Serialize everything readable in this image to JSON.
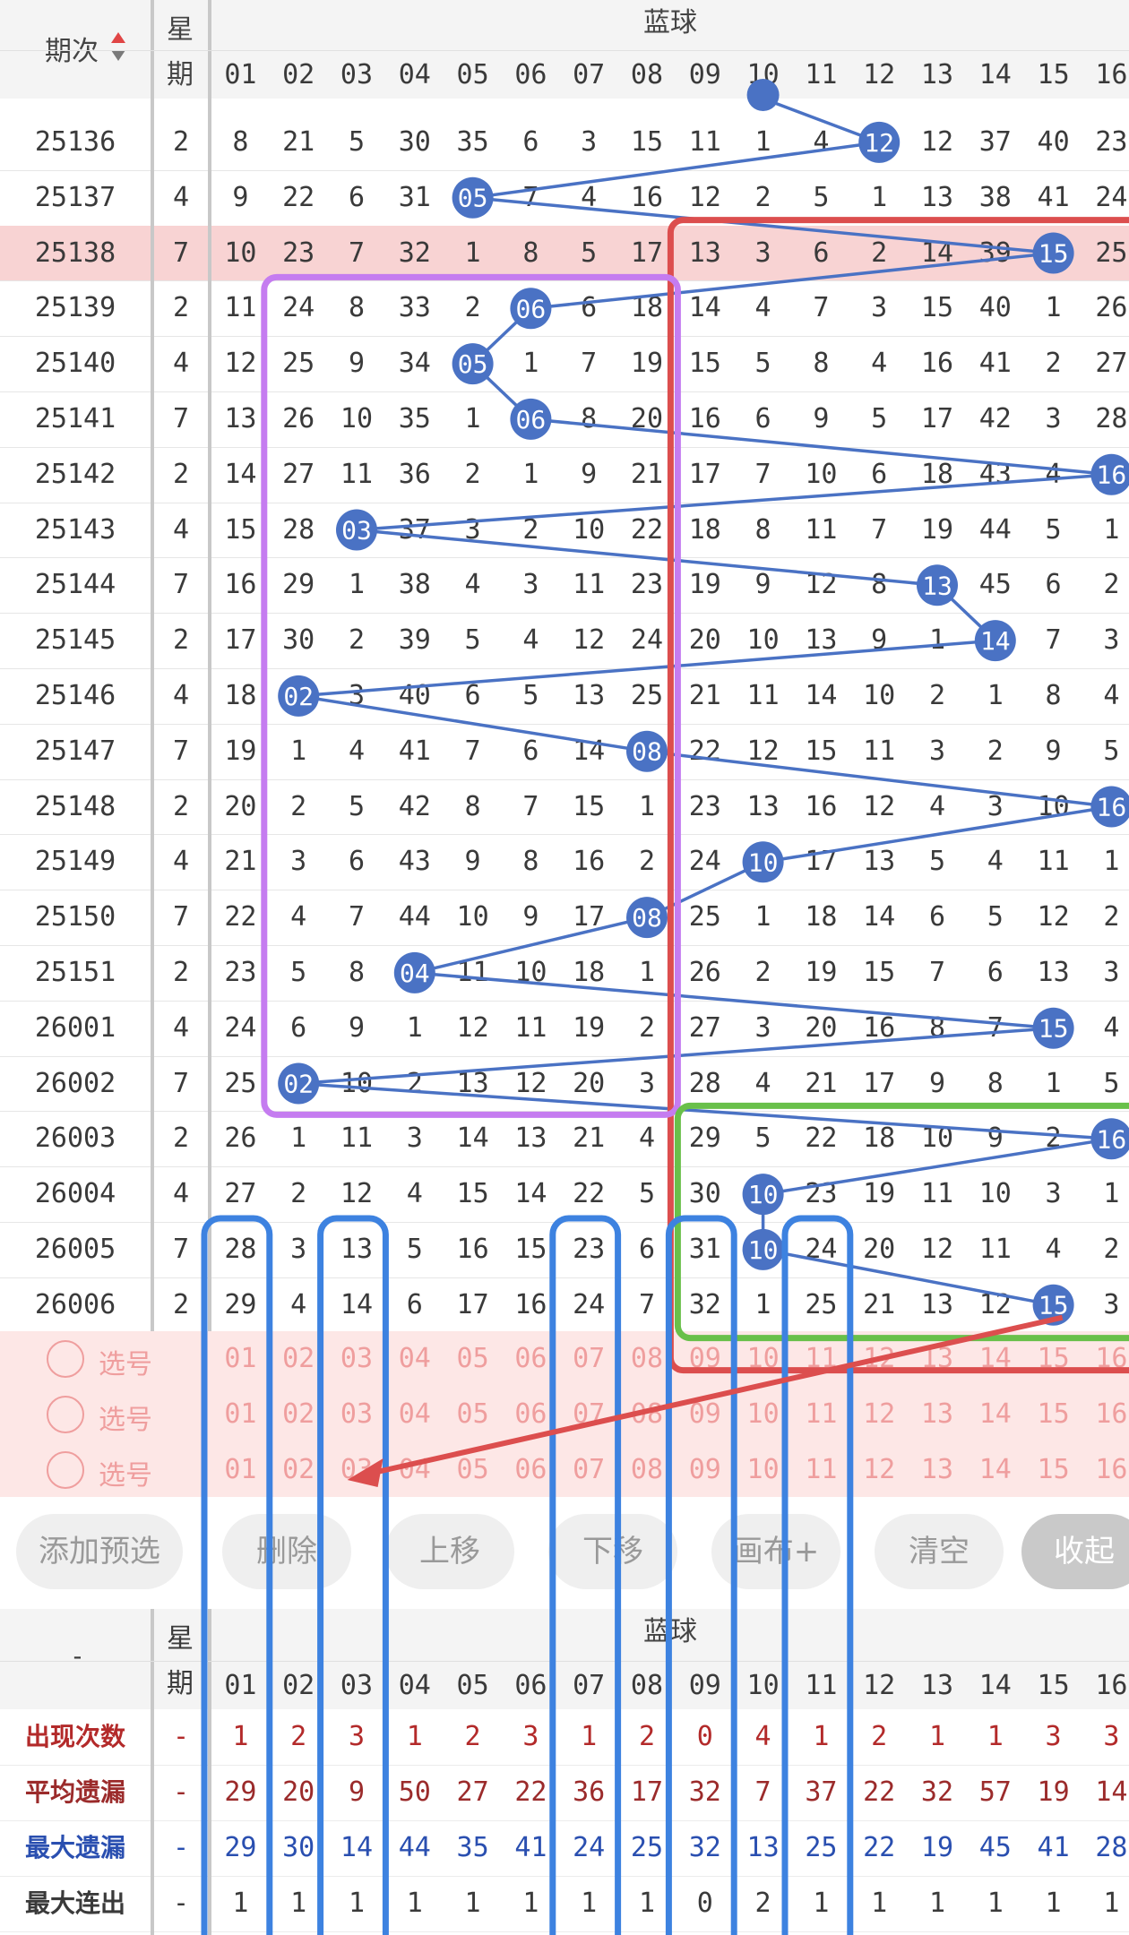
{
  "header": {
    "period_label": "期次",
    "week_label_1": "星",
    "week_label_2": "期",
    "group_title": "蓝球",
    "numbers": [
      "01",
      "02",
      "03",
      "04",
      "05",
      "06",
      "07",
      "08",
      "09",
      "10",
      "11",
      "12",
      "13",
      "14",
      "15",
      "16"
    ]
  },
  "rows": [
    {
      "period": "25136",
      "weekday": "2",
      "cells": [
        "8",
        "21",
        "5",
        "30",
        "35",
        "6",
        "3",
        "15",
        "11",
        "1",
        "4",
        "12",
        "12",
        "37",
        "40",
        "23"
      ],
      "hit": 12
    },
    {
      "period": "25137",
      "weekday": "4",
      "cells": [
        "9",
        "22",
        "6",
        "31",
        "05",
        "7",
        "4",
        "16",
        "12",
        "2",
        "5",
        "1",
        "13",
        "38",
        "41",
        "24"
      ],
      "hit": 5
    },
    {
      "period": "25138",
      "weekday": "7",
      "cells": [
        "10",
        "23",
        "7",
        "32",
        "1",
        "8",
        "5",
        "17",
        "13",
        "3",
        "6",
        "2",
        "14",
        "39",
        "15",
        "25"
      ],
      "hit": 15,
      "highlight": true
    },
    {
      "period": "25139",
      "weekday": "2",
      "cells": [
        "11",
        "24",
        "8",
        "33",
        "2",
        "06",
        "6",
        "18",
        "14",
        "4",
        "7",
        "3",
        "15",
        "40",
        "1",
        "26"
      ],
      "hit": 6
    },
    {
      "period": "25140",
      "weekday": "4",
      "cells": [
        "12",
        "25",
        "9",
        "34",
        "05",
        "1",
        "7",
        "19",
        "15",
        "5",
        "8",
        "4",
        "16",
        "41",
        "2",
        "27"
      ],
      "hit": 5
    },
    {
      "period": "25141",
      "weekday": "7",
      "cells": [
        "13",
        "26",
        "10",
        "35",
        "1",
        "06",
        "8",
        "20",
        "16",
        "6",
        "9",
        "5",
        "17",
        "42",
        "3",
        "28"
      ],
      "hit": 6
    },
    {
      "period": "25142",
      "weekday": "2",
      "cells": [
        "14",
        "27",
        "11",
        "36",
        "2",
        "1",
        "9",
        "21",
        "17",
        "7",
        "10",
        "6",
        "18",
        "43",
        "4",
        "16"
      ],
      "hit": 16
    },
    {
      "period": "25143",
      "weekday": "4",
      "cells": [
        "15",
        "28",
        "03",
        "37",
        "3",
        "2",
        "10",
        "22",
        "18",
        "8",
        "11",
        "7",
        "19",
        "44",
        "5",
        "1"
      ],
      "hit": 3
    },
    {
      "period": "25144",
      "weekday": "7",
      "cells": [
        "16",
        "29",
        "1",
        "38",
        "4",
        "3",
        "11",
        "23",
        "19",
        "9",
        "12",
        "8",
        "13",
        "45",
        "6",
        "2"
      ],
      "hit": 13
    },
    {
      "period": "25145",
      "weekday": "2",
      "cells": [
        "17",
        "30",
        "2",
        "39",
        "5",
        "4",
        "12",
        "24",
        "20",
        "10",
        "13",
        "9",
        "1",
        "14",
        "7",
        "3"
      ],
      "hit": 14
    },
    {
      "period": "25146",
      "weekday": "4",
      "cells": [
        "18",
        "02",
        "3",
        "40",
        "6",
        "5",
        "13",
        "25",
        "21",
        "11",
        "14",
        "10",
        "2",
        "1",
        "8",
        "4"
      ],
      "hit": 2
    },
    {
      "period": "25147",
      "weekday": "7",
      "cells": [
        "19",
        "1",
        "4",
        "41",
        "7",
        "6",
        "14",
        "08",
        "22",
        "12",
        "15",
        "11",
        "3",
        "2",
        "9",
        "5"
      ],
      "hit": 8
    },
    {
      "period": "25148",
      "weekday": "2",
      "cells": [
        "20",
        "2",
        "5",
        "42",
        "8",
        "7",
        "15",
        "1",
        "23",
        "13",
        "16",
        "12",
        "4",
        "3",
        "10",
        "16"
      ],
      "hit": 16
    },
    {
      "period": "25149",
      "weekday": "4",
      "cells": [
        "21",
        "3",
        "6",
        "43",
        "9",
        "8",
        "16",
        "2",
        "24",
        "10",
        "17",
        "13",
        "5",
        "4",
        "11",
        "1"
      ],
      "hit": 10
    },
    {
      "period": "25150",
      "weekday": "7",
      "cells": [
        "22",
        "4",
        "7",
        "44",
        "10",
        "9",
        "17",
        "08",
        "25",
        "1",
        "18",
        "14",
        "6",
        "5",
        "12",
        "2"
      ],
      "hit": 8
    },
    {
      "period": "25151",
      "weekday": "2",
      "cells": [
        "23",
        "5",
        "8",
        "04",
        "11",
        "10",
        "18",
        "1",
        "26",
        "2",
        "19",
        "15",
        "7",
        "6",
        "13",
        "3"
      ],
      "hit": 4
    },
    {
      "period": "26001",
      "weekday": "4",
      "cells": [
        "24",
        "6",
        "9",
        "1",
        "12",
        "11",
        "19",
        "2",
        "27",
        "3",
        "20",
        "16",
        "8",
        "7",
        "15",
        "4"
      ],
      "hit": 15
    },
    {
      "period": "26002",
      "weekday": "7",
      "cells": [
        "25",
        "02",
        "10",
        "2",
        "13",
        "12",
        "20",
        "3",
        "28",
        "4",
        "21",
        "17",
        "9",
        "8",
        "1",
        "5"
      ],
      "hit": 2
    },
    {
      "period": "26003",
      "weekday": "2",
      "cells": [
        "26",
        "1",
        "11",
        "3",
        "14",
        "13",
        "21",
        "4",
        "29",
        "5",
        "22",
        "18",
        "10",
        "9",
        "2",
        "16"
      ],
      "hit": 16
    },
    {
      "period": "26004",
      "weekday": "4",
      "cells": [
        "27",
        "2",
        "12",
        "4",
        "15",
        "14",
        "22",
        "5",
        "30",
        "10",
        "23",
        "19",
        "11",
        "10",
        "3",
        "1"
      ],
      "hit": 10
    },
    {
      "period": "26005",
      "weekday": "7",
      "cells": [
        "28",
        "3",
        "13",
        "5",
        "16",
        "15",
        "23",
        "6",
        "31",
        "10",
        "24",
        "20",
        "12",
        "11",
        "4",
        "2"
      ],
      "hit": 10
    },
    {
      "period": "26006",
      "weekday": "2",
      "cells": [
        "29",
        "4",
        "14",
        "6",
        "17",
        "16",
        "24",
        "7",
        "32",
        "1",
        "25",
        "21",
        "13",
        "12",
        "15",
        "3"
      ],
      "hit": 15
    }
  ],
  "select_rows": [
    {
      "label": "选号",
      "numbers": [
        "01",
        "02",
        "03",
        "04",
        "05",
        "06",
        "07",
        "08",
        "09",
        "10",
        "11",
        "12",
        "13",
        "14",
        "15",
        "16"
      ]
    },
    {
      "label": "选号",
      "numbers": [
        "01",
        "02",
        "03",
        "04",
        "05",
        "06",
        "07",
        "08",
        "09",
        "10",
        "11",
        "12",
        "13",
        "14",
        "15",
        "16"
      ]
    },
    {
      "label": "选号",
      "numbers": [
        "01",
        "02",
        "03",
        "04",
        "05",
        "06",
        "07",
        "08",
        "09",
        "10",
        "11",
        "12",
        "13",
        "14",
        "15",
        "16"
      ]
    }
  ],
  "buttons": {
    "add_preselect": "添加预选",
    "delete": "删除",
    "move_up": "上移",
    "move_down": "下移",
    "draw": "画布+",
    "clear": "清空",
    "collapse": "收起"
  },
  "footer": {
    "dash": "-",
    "week_label_1": "星",
    "week_label_2": "期",
    "group_title": "蓝球",
    "numbers": [
      "01",
      "02",
      "03",
      "04",
      "05",
      "06",
      "07",
      "08",
      "09",
      "10",
      "11",
      "12",
      "13",
      "14",
      "15",
      "16"
    ],
    "stats": [
      {
        "label": "出现次数",
        "week": "-",
        "values": [
          "1",
          "2",
          "3",
          "1",
          "2",
          "3",
          "1",
          "2",
          "0",
          "4",
          "1",
          "2",
          "1",
          "1",
          "3",
          "3"
        ],
        "color": "#b32a2a"
      },
      {
        "label": "平均遗漏",
        "week": "-",
        "values": [
          "29",
          "20",
          "9",
          "50",
          "27",
          "22",
          "36",
          "17",
          "32",
          "7",
          "37",
          "22",
          "32",
          "57",
          "19",
          "14"
        ],
        "color": "#9b2b2b"
      },
      {
        "label": "最大遗漏",
        "week": "-",
        "values": [
          "29",
          "30",
          "14",
          "44",
          "35",
          "41",
          "24",
          "25",
          "32",
          "13",
          "25",
          "22",
          "19",
          "45",
          "41",
          "28"
        ],
        "color": "#2a4fb0"
      },
      {
        "label": "最大连出",
        "week": "-",
        "values": [
          "1",
          "1",
          "1",
          "1",
          "1",
          "1",
          "1",
          "1",
          "0",
          "2",
          "1",
          "1",
          "1",
          "1",
          "1",
          "1"
        ],
        "color": "#3a3a3a"
      }
    ]
  },
  "colors": {
    "ball": "#4a72c4",
    "highlight_row": "#f8d3d3",
    "red_box": "#dc4e4e",
    "purple_box": "#c57cf0",
    "green_box": "#69c04a",
    "blue_box": "#3d82e0"
  }
}
